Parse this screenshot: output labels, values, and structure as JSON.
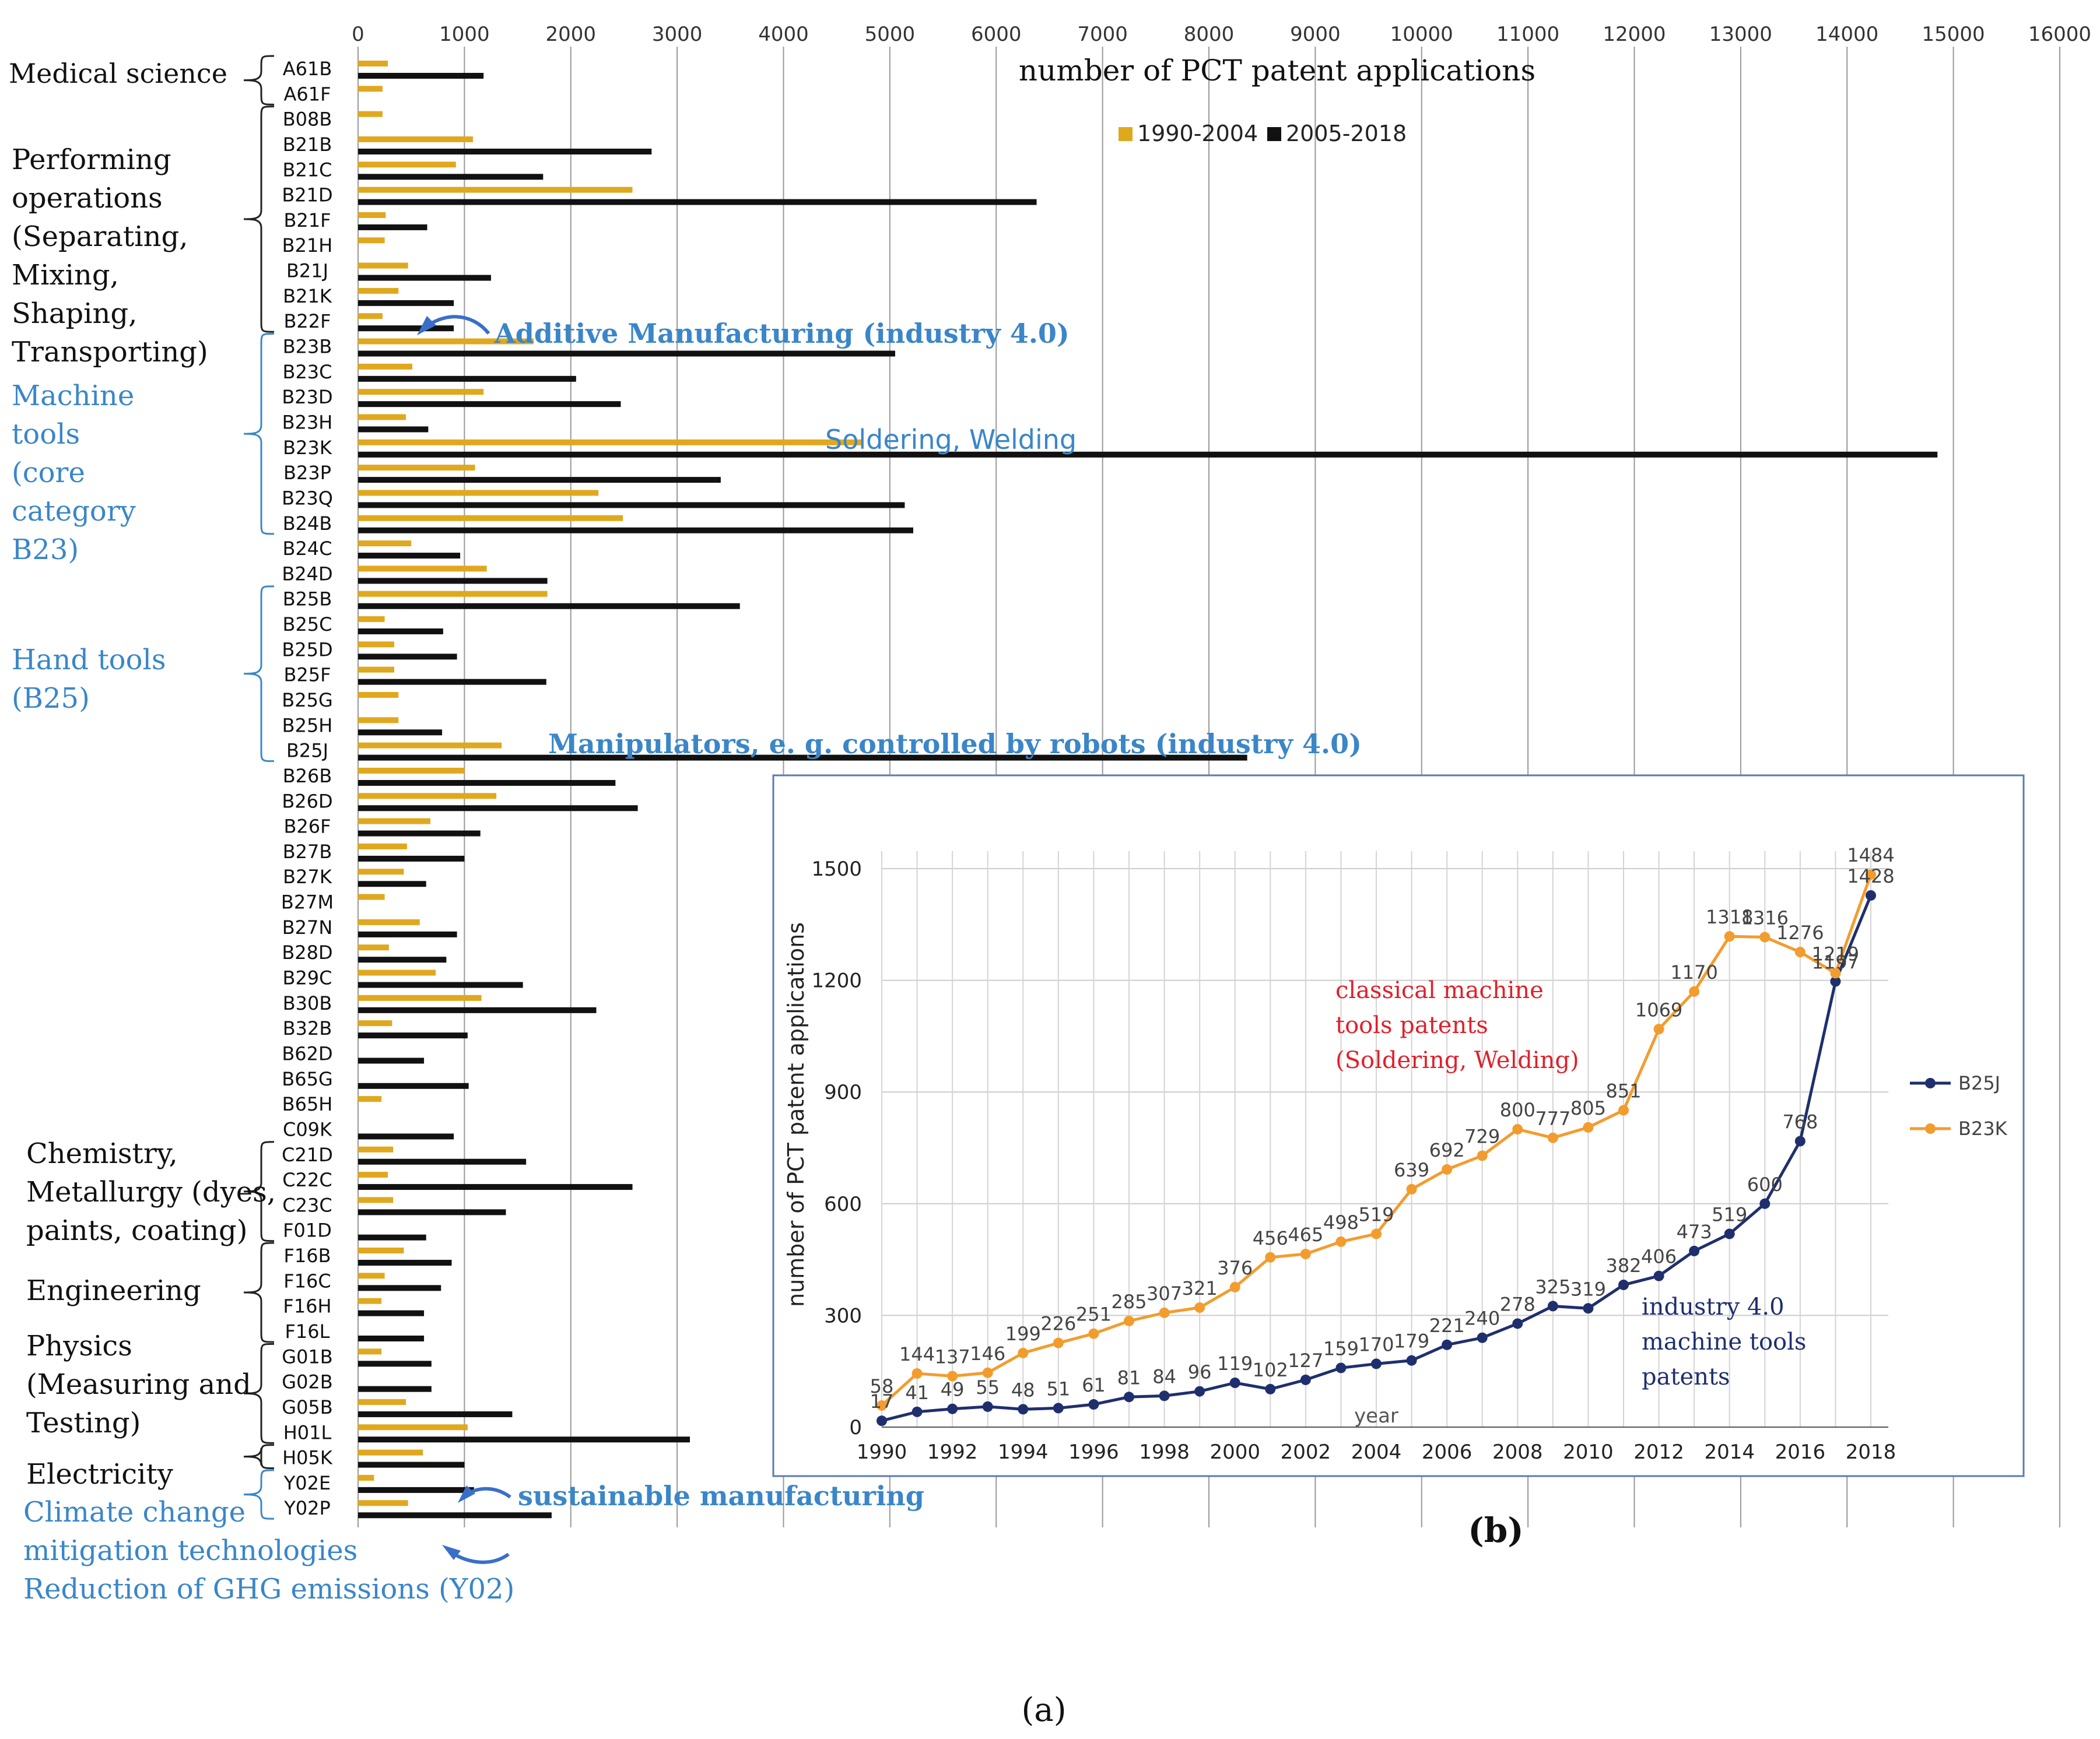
{
  "colors": {
    "early": "#E0A81E",
    "late": "#111111",
    "blue_note": "#3A86C8",
    "b25j": "#1F2F6E",
    "b23k": "#F39C2E",
    "red_note": "#E0202A",
    "grid": "#999999"
  },
  "panel_a": {
    "axis_title": "number of PCT patent applications",
    "caption": "(a)",
    "group_labels": [
      {
        "id": "medical",
        "lines": [
          "Medical science"
        ],
        "color": "black"
      },
      {
        "id": "performing",
        "lines": [
          "Performing",
          "operations",
          "(Separating,",
          "Mixing,",
          "Shaping,",
          "Transporting)"
        ],
        "color": "black"
      },
      {
        "id": "machine",
        "lines": [
          "Machine",
          "tools",
          "(core",
          "category",
          "B23)"
        ],
        "color": "blue"
      },
      {
        "id": "hand",
        "lines": [
          "Hand tools",
          "(B25)"
        ],
        "color": "blue"
      },
      {
        "id": "chemistry",
        "lines": [
          "Chemistry,",
          "Metallurgy (dyes,",
          "paints, coating)"
        ],
        "color": "black"
      },
      {
        "id": "engineering",
        "lines": [
          "Engineering"
        ],
        "color": "black"
      },
      {
        "id": "physics",
        "lines": [
          "Physics",
          "(Measuring and",
          "Testing)"
        ],
        "color": "black"
      },
      {
        "id": "electricity",
        "lines": [
          "Electricity"
        ],
        "color": "black"
      },
      {
        "id": "climate",
        "lines": [
          "Climate change",
          "mitigation technologies",
          "Reduction of GHG emissions (Y02)"
        ],
        "color": "blue"
      }
    ],
    "annotations": {
      "additive": "Additive Manufacturing (industry 4.0)",
      "soldering": "Soldering, Welding",
      "manipulators": "Manipulators, e. g. controlled by robots (industry 4.0)",
      "sustainable": "sustainable manufacturing"
    }
  },
  "panel_b": {
    "label": "(b)",
    "notes": {
      "classical": [
        "classical machine",
        "tools patents",
        "(Soldering, Welding)"
      ],
      "industry": [
        "industry 4.0",
        "machine tools",
        "patents"
      ]
    }
  },
  "chart_data": [
    {
      "type": "bar",
      "orientation": "horizontal",
      "title": "",
      "xlabel": "number of PCT patent applications",
      "xlim": [
        0,
        16000
      ],
      "xticks": [
        0,
        1000,
        2000,
        3000,
        4000,
        5000,
        6000,
        7000,
        8000,
        9000,
        10000,
        11000,
        12000,
        13000,
        14000,
        15000,
        16000
      ],
      "grid": true,
      "legend_position": "top-center",
      "categories": [
        "A61B",
        "A61F",
        "B08B",
        "B21B",
        "B21C",
        "B21D",
        "B21F",
        "B21H",
        "B21J",
        "B21K",
        "B22F",
        "B23B",
        "B23C",
        "B23D",
        "B23H",
        "B23K",
        "B23P",
        "B23Q",
        "B24B",
        "B24C",
        "B24D",
        "B25B",
        "B25C",
        "B25D",
        "B25F",
        "B25G",
        "B25H",
        "B25J",
        "B26B",
        "B26D",
        "B26F",
        "B27B",
        "B27K",
        "B27M",
        "B27N",
        "B28D",
        "B29C",
        "B30B",
        "B32B",
        "B62D",
        "B65G",
        "B65H",
        "C09K",
        "C21D",
        "C22C",
        "C23C",
        "F01D",
        "F16B",
        "F16C",
        "F16H",
        "F16L",
        "G01B",
        "G02B",
        "G05B",
        "H01L",
        "H05K",
        "Y02E",
        "Y02P"
      ],
      "series": [
        {
          "name": "1990-2004",
          "values": [
            280,
            230,
            230,
            1080,
            920,
            2580,
            260,
            250,
            470,
            380,
            230,
            1650,
            510,
            1180,
            450,
            4730,
            1100,
            2260,
            2490,
            500,
            1210,
            1780,
            250,
            340,
            340,
            380,
            380,
            1350,
            1000,
            1300,
            680,
            460,
            430,
            250,
            580,
            290,
            730,
            1160,
            320,
            0,
            0,
            220,
            0,
            330,
            280,
            330,
            0,
            430,
            250,
            220,
            0,
            220,
            0,
            450,
            1030,
            610,
            150,
            470
          ]
        },
        {
          "name": "2005-2018",
          "values": [
            1180,
            0,
            0,
            2760,
            1740,
            6380,
            650,
            0,
            1250,
            900,
            900,
            5050,
            2050,
            2470,
            660,
            14850,
            3410,
            5140,
            5220,
            960,
            1780,
            3590,
            800,
            930,
            1770,
            0,
            790,
            8360,
            2420,
            2630,
            1150,
            1000,
            640,
            0,
            930,
            830,
            1550,
            2240,
            1030,
            620,
            1040,
            0,
            900,
            1580,
            2580,
            1390,
            640,
            880,
            780,
            620,
            620,
            690,
            690,
            1450,
            3120,
            1000,
            1090,
            1820
          ]
        }
      ]
    },
    {
      "type": "line",
      "title": "",
      "xlabel": "year",
      "ylabel": "number of PCT patent applications",
      "ylim": [
        0,
        1500
      ],
      "yticks": [
        0,
        300,
        600,
        900,
        1200,
        1500
      ],
      "xticks": [
        1990,
        1992,
        1994,
        1996,
        1998,
        2000,
        2002,
        2004,
        2006,
        2008,
        2010,
        2012,
        2014,
        2016,
        2018
      ],
      "grid": true,
      "legend_position": "right",
      "x": [
        1990,
        1991,
        1992,
        1993,
        1994,
        1995,
        1996,
        1997,
        1998,
        1999,
        2000,
        2001,
        2002,
        2003,
        2004,
        2005,
        2006,
        2007,
        2008,
        2009,
        2010,
        2011,
        2012,
        2013,
        2014,
        2015,
        2016,
        2017,
        2018
      ],
      "series": [
        {
          "name": "B25J",
          "values": [
            17,
            41,
            49,
            55,
            48,
            51,
            61,
            81,
            84,
            96,
            119,
            102,
            127,
            159,
            170,
            179,
            221,
            240,
            278,
            325,
            319,
            382,
            406,
            473,
            519,
            600,
            768,
            1197,
            1428
          ]
        },
        {
          "name": "B23K",
          "values": [
            58,
            144,
            137,
            146,
            199,
            226,
            251,
            285,
            307,
            321,
            376,
            456,
            465,
            498,
            519,
            639,
            692,
            729,
            800,
            777,
            805,
            851,
            1069,
            1170,
            1318,
            1316,
            1276,
            1219,
            1484
          ]
        }
      ]
    }
  ]
}
